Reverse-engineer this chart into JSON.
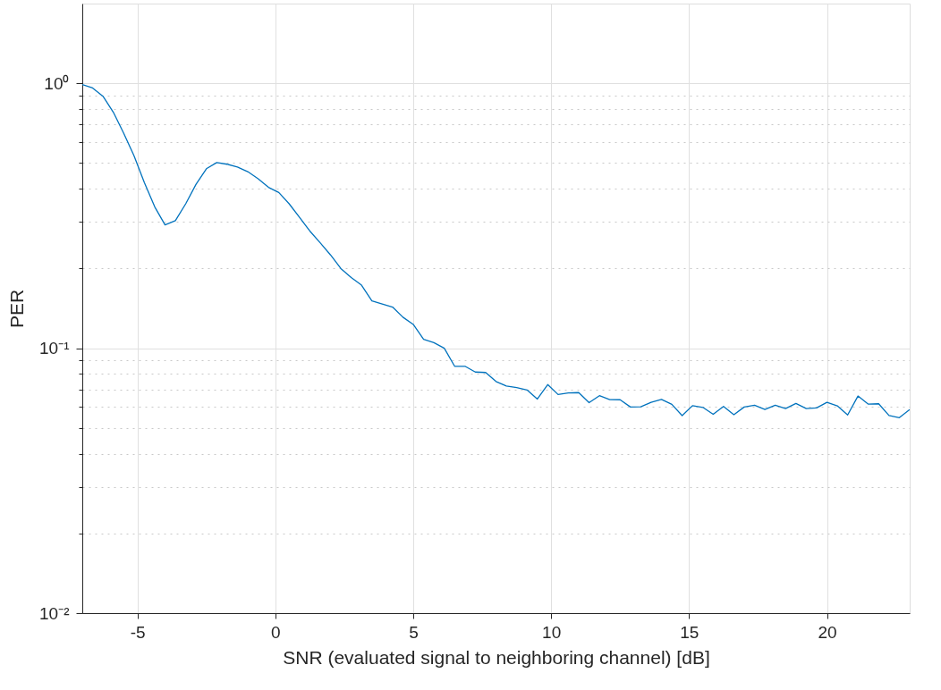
{
  "chart_data": {
    "type": "line",
    "xlabel": "SNR (evaluated signal to neighboring channel) [dB]",
    "ylabel": "PER",
    "log": "y",
    "grid": true,
    "xlim": [
      -7,
      23
    ],
    "xticks": [
      -5,
      0,
      5,
      10,
      15,
      20
    ],
    "ylim": [
      0.01,
      2
    ],
    "yticks": [
      {
        "value": 0.01,
        "label": "10⁻²"
      },
      {
        "value": 0.02,
        "label": null
      },
      {
        "value": 0.03,
        "label": null
      },
      {
        "value": 0.04,
        "label": null
      },
      {
        "value": 0.05,
        "label": null
      },
      {
        "value": 0.06,
        "label": null
      },
      {
        "value": 0.07,
        "label": null
      },
      {
        "value": 0.08,
        "label": null
      },
      {
        "value": 0.09,
        "label": null
      },
      {
        "value": 0.1,
        "label": "10⁻¹"
      },
      {
        "value": 0.2,
        "label": null
      },
      {
        "value": 0.3,
        "label": null
      },
      {
        "value": 0.4,
        "label": null
      },
      {
        "value": 0.5,
        "label": null
      },
      {
        "value": 0.6,
        "label": null
      },
      {
        "value": 0.7,
        "label": null
      },
      {
        "value": 0.8,
        "label": null
      },
      {
        "value": 0.9,
        "label": null
      },
      {
        "value": 1,
        "label": "10⁰"
      }
    ],
    "x": [
      -7,
      -6.625,
      -6.25,
      -5.875,
      -5.5,
      -5.125,
      -4.75,
      -4.375,
      -4,
      -3.625,
      -3.25,
      -2.875,
      -2.5,
      -2.125,
      -1.75,
      -1.375,
      -1,
      -0.625,
      -0.25,
      0.125,
      0.5,
      0.875,
      1.25,
      1.625,
      2,
      2.375,
      2.75,
      3.125,
      3.5,
      3.875,
      4.25,
      4.625,
      5,
      5.375,
      5.75,
      6.125,
      6.5,
      6.875,
      7.25,
      7.625,
      8,
      8.375,
      8.75,
      9.125,
      9.5,
      9.875,
      10.25,
      10.625,
      11,
      11.375,
      11.75,
      12.125,
      12.5,
      12.875,
      13.25,
      13.625,
      14,
      14.375,
      14.75,
      15.125,
      15.5,
      15.875,
      16.25,
      16.625,
      17,
      17.375,
      17.75,
      18.125,
      18.5,
      18.875,
      19.25,
      19.625,
      20,
      20.375,
      20.75,
      21.125,
      21.5,
      21.875,
      22.25,
      22.625,
      23
    ],
    "series": [
      {
        "color": "#0072bd",
        "line_style": "solid",
        "marker": "none",
        "values": [
          0.99,
          0.96,
          0.894,
          0.778,
          0.648,
          0.533,
          0.422,
          0.342,
          0.292,
          0.303,
          0.351,
          0.416,
          0.476,
          0.502,
          0.495,
          0.483,
          0.464,
          0.436,
          0.405,
          0.387,
          0.351,
          0.312,
          0.277,
          0.25,
          0.225,
          0.2,
          0.185,
          0.173,
          0.151,
          0.147,
          0.143,
          0.131,
          0.123,
          0.108,
          0.105,
          0.1,
          0.0855,
          0.0855,
          0.0813,
          0.081,
          0.0749,
          0.072,
          0.071,
          0.0696,
          0.0643,
          0.0729,
          0.0669,
          0.0678,
          0.068,
          0.0623,
          0.0662,
          0.064,
          0.0639,
          0.06,
          0.0601,
          0.0625,
          0.0641,
          0.0614,
          0.0557,
          0.0607,
          0.0598,
          0.0563,
          0.0603,
          0.0561,
          0.06,
          0.0609,
          0.0587,
          0.0609,
          0.0592,
          0.0619,
          0.0592,
          0.0595,
          0.0625,
          0.0606,
          0.056,
          0.066,
          0.0615,
          0.0617,
          0.0557,
          0.0547,
          0.0587
        ]
      }
    ]
  }
}
